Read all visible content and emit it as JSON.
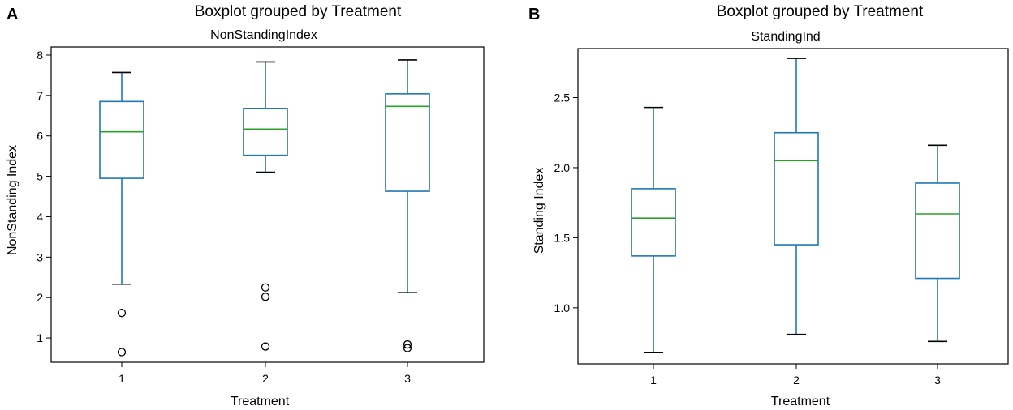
{
  "chart_data": [
    {
      "panel_label": "A",
      "type": "boxplot",
      "title": "Boxplot grouped by Treatment",
      "subtitle": "NonStandingIndex",
      "xlabel": "Treatment",
      "ylabel": "NonStanding Index",
      "ylim": [
        0.4,
        8.2
      ],
      "yticks": [
        "1",
        "2",
        "3",
        "4",
        "5",
        "6",
        "7",
        "8"
      ],
      "ytick_values": [
        1,
        2,
        3,
        4,
        5,
        6,
        7,
        8
      ],
      "categories": [
        "1",
        "2",
        "3"
      ],
      "boxes": [
        {
          "group": "1",
          "whislo": 2.33,
          "q1": 4.95,
          "med": 6.1,
          "q3": 6.85,
          "whishi": 7.57,
          "fliers": [
            1.62,
            0.65
          ]
        },
        {
          "group": "2",
          "whislo": 5.1,
          "q1": 5.52,
          "med": 6.17,
          "q3": 6.68,
          "whishi": 7.83,
          "fliers": [
            2.25,
            2.02,
            0.79
          ]
        },
        {
          "group": "3",
          "whislo": 2.12,
          "q1": 4.63,
          "med": 6.73,
          "q3": 7.04,
          "whishi": 7.88,
          "fliers": [
            0.84,
            0.75
          ]
        }
      ]
    },
    {
      "panel_label": "B",
      "type": "boxplot",
      "title": "Boxplot grouped by Treatment",
      "subtitle": "StandingInd",
      "xlabel": "Treatment",
      "ylabel": "Standing Index",
      "ylim": [
        0.6,
        2.85
      ],
      "yticks": [
        "1.0",
        "1.5",
        "2.0",
        "2.5"
      ],
      "ytick_values": [
        1.0,
        1.5,
        2.0,
        2.5
      ],
      "categories": [
        "1",
        "2",
        "3"
      ],
      "boxes": [
        {
          "group": "1",
          "whislo": 0.68,
          "q1": 1.37,
          "med": 1.64,
          "q3": 1.85,
          "whishi": 2.43,
          "fliers": []
        },
        {
          "group": "2",
          "whislo": 0.81,
          "q1": 1.45,
          "med": 2.05,
          "q3": 2.25,
          "whishi": 2.78,
          "fliers": []
        },
        {
          "group": "3",
          "whislo": 0.76,
          "q1": 1.21,
          "med": 1.67,
          "q3": 1.89,
          "whishi": 2.16,
          "fliers": []
        }
      ]
    }
  ]
}
